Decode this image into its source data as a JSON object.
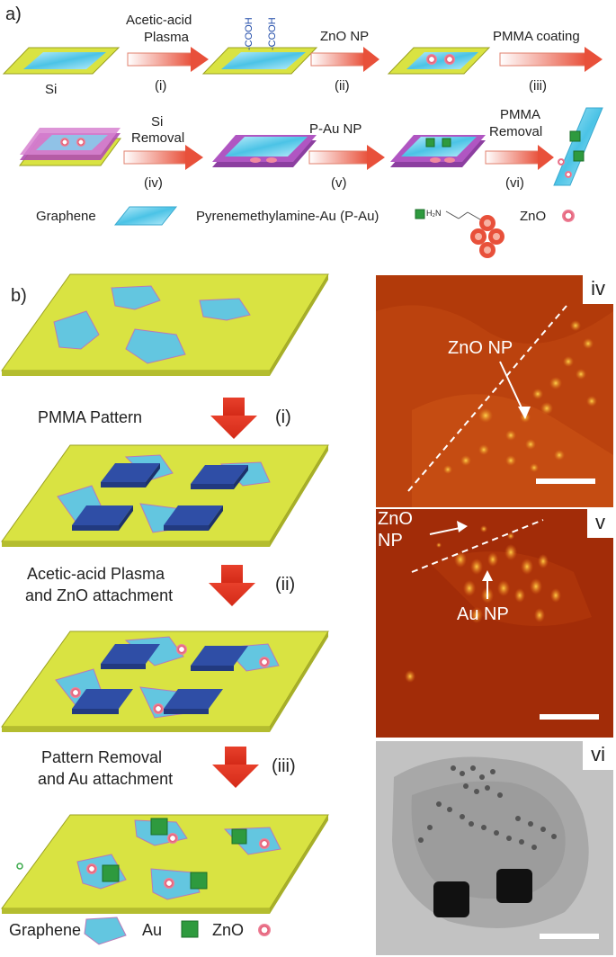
{
  "panel_a": {
    "label": "a)",
    "row1": {
      "substrate": "Si",
      "step1_line1": "Acetic-acid",
      "step1_line2": "Plasma",
      "step1_num": "(i)",
      "cooh1": "-COOH",
      "cooh2": "-COOH",
      "step2": "ZnO NP",
      "step2_num": "(ii)",
      "step3": "PMMA coating",
      "step3_num": "(iii)"
    },
    "row2": {
      "step4_line1": "Si",
      "step4_line2": "Removal",
      "step4_num": "(iv)",
      "step5": "P-Au NP",
      "step5_num": "(v)",
      "step6_line1": "PMMA",
      "step6_line2": "Removal",
      "step6_num": "(vi)"
    },
    "legend": {
      "graphene": "Graphene",
      "pau": "Pyrenemethylamine-Au (P-Au)",
      "h2n": "H₂N",
      "zno": "ZnO"
    }
  },
  "panel_b": {
    "label": "b)",
    "step1_text": "PMMA Pattern",
    "step1_num": "(i)",
    "step2_line1": "Acetic-acid Plasma",
    "step2_line2": "and ZnO attachment",
    "step2_num": "(ii)",
    "step3_line1": "Pattern Removal",
    "step3_line2": "and Au attachment",
    "step3_num": "(iii)",
    "legend": {
      "graphene": "Graphene",
      "au": "Au",
      "zno": "ZnO"
    }
  },
  "micrographs": {
    "iv": {
      "tag": "iv",
      "label": "ZnO NP"
    },
    "v": {
      "tag": "v",
      "label_zno_1": "ZnO",
      "label_zno_2": "NP",
      "label_au": "Au NP"
    },
    "vi": {
      "tag": "vi"
    }
  },
  "colors": {
    "substrate": "#d9e342",
    "graphene": "#63c6e0",
    "pmma": "#2f4ea6",
    "arrow": "#e8402b",
    "au": "#2e9a3e",
    "zno": "#e25a72",
    "afm": "#b23a0a"
  }
}
